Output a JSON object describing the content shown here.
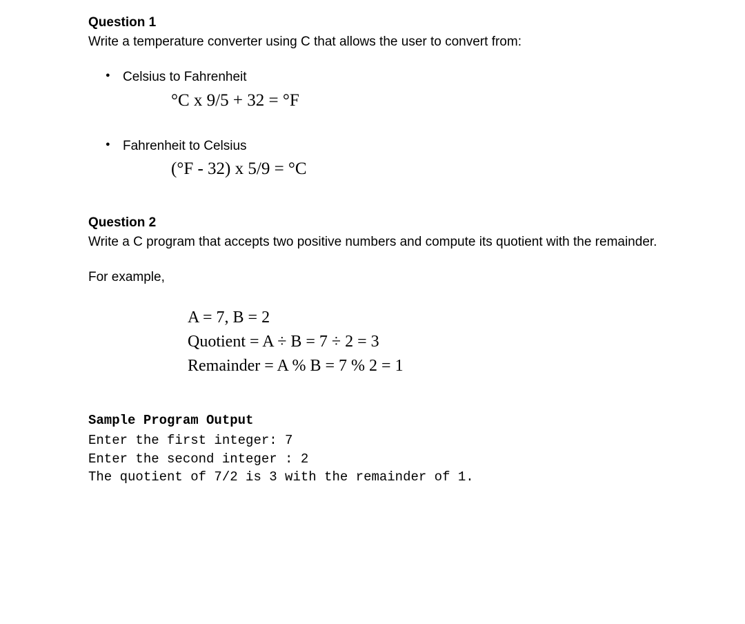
{
  "q1": {
    "heading": "Question 1",
    "text": "Write a temperature converter using C that allows the user to convert from:",
    "bullets": [
      {
        "label": "Celsius to Fahrenheit",
        "formula": "°C  x  9/5 + 32 = °F"
      },
      {
        "label": "Fahrenheit to Celsius",
        "formula": "(°F  -  32)  x  5/9 = °C"
      }
    ]
  },
  "q2": {
    "heading": "Question 2",
    "text": "Write a C program that accepts two positive numbers and compute its quotient with the remainder.",
    "for_example": "For example,",
    "math": {
      "line1": "A = 7, B = 2",
      "line2": "Quotient = A ÷ B = 7 ÷ 2 = 3",
      "line3": "Remainder = A % B = 7 % 2 = 1"
    },
    "sample_heading": "Sample Program Output",
    "sample_output": "Enter the first integer: 7\nEnter the second integer : 2\nThe quotient of 7/2 is 3 with the remainder of 1."
  }
}
